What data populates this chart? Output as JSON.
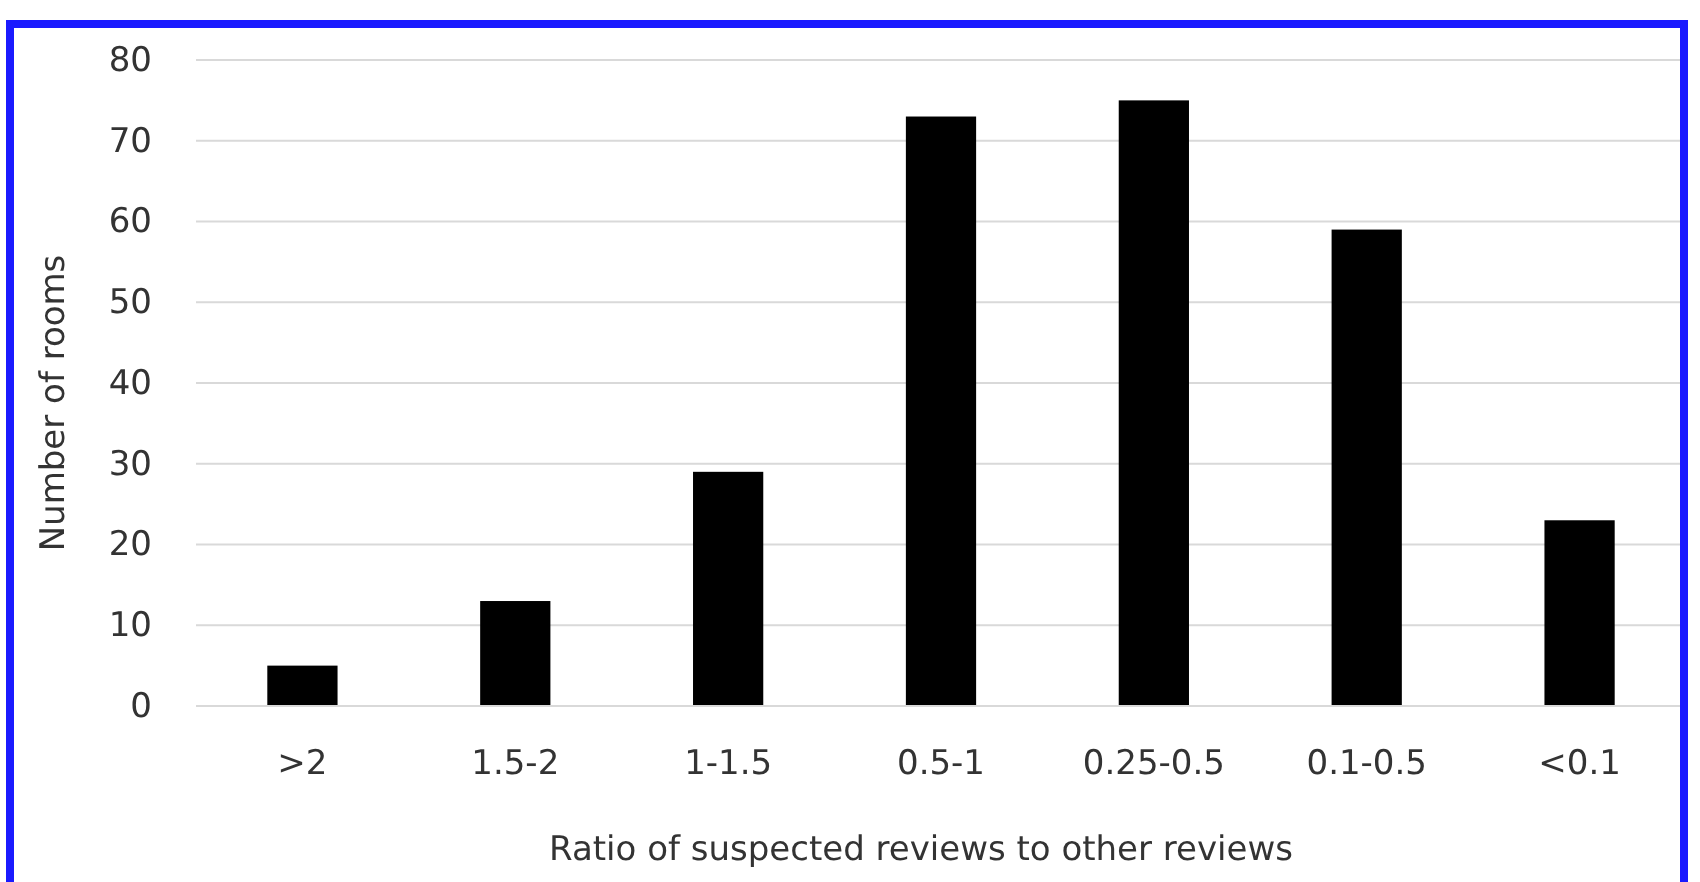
{
  "chart_data": {
    "type": "bar",
    "xlabel": "Ratio of suspected reviews to other reviews",
    "ylabel": "Number of rooms",
    "categories": [
      ">2",
      "1.5-2",
      "1-1.5",
      "0.5-1",
      "0.25-0.5",
      "0.1-0.5",
      "<0.1"
    ],
    "values": [
      5,
      13,
      29,
      73,
      75,
      59,
      23
    ],
    "color": "#000000",
    "ylim": [
      0,
      80
    ],
    "yticks": [
      0,
      10,
      20,
      30,
      40,
      50,
      60,
      70,
      80
    ],
    "grid": "y"
  }
}
